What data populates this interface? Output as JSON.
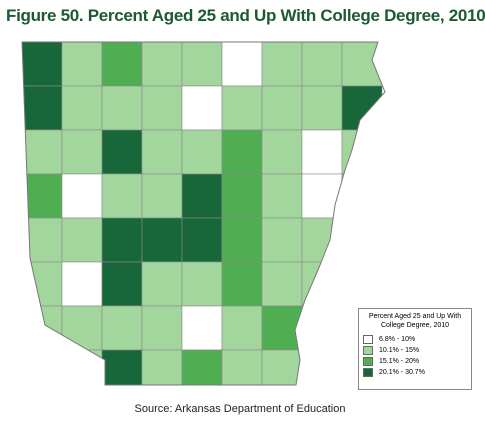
{
  "title": "Figure 50. Percent Aged 25 and Up With College Degree, 2010",
  "legend": {
    "title": "Percent Aged 25 and Up With College Degree, 2010",
    "items": [
      {
        "label": "6.8% - 10%",
        "color": "#ffffff"
      },
      {
        "label": "10.1% - 15%",
        "color": "#a3d69c"
      },
      {
        "label": "15.1% - 20%",
        "color": "#4fae52"
      },
      {
        "label": "20.1% - 30.7%",
        "color": "#17673a"
      }
    ]
  },
  "source": "Source: Arkansas Department of Education"
}
